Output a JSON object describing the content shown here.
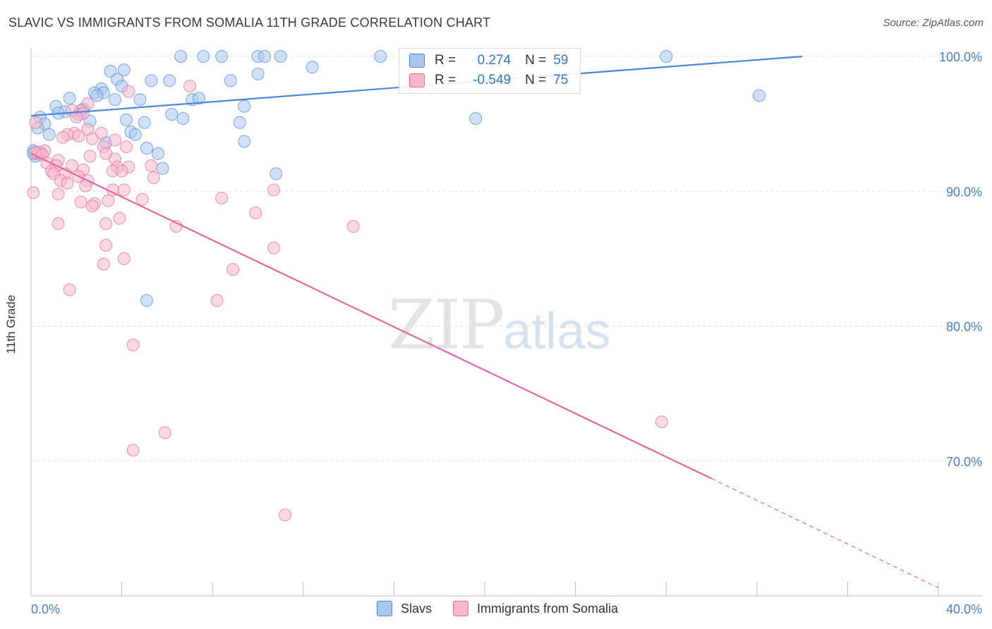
{
  "title": "SLAVIC VS IMMIGRANTS FROM SOMALIA 11TH GRADE CORRELATION CHART",
  "source": "Source: ZipAtlas.com",
  "watermark": {
    "zip": "ZIP",
    "atlas": "atlas"
  },
  "legend_top": {
    "r_label": "R =",
    "n_label": "N =",
    "rows": [
      {
        "r": "0.274",
        "n": "59",
        "color": "#a9c7ee"
      },
      {
        "r": "-0.549",
        "n": "75",
        "color": "#f6b8cb"
      }
    ]
  },
  "legend_bottom": [
    {
      "label": "Slavs",
      "color": "#a9c7ee"
    },
    {
      "label": "Immigrants from Somalia",
      "color": "#f6b8cb"
    }
  ],
  "chart_data": {
    "type": "scatter",
    "title": "SLAVIC VS IMMIGRANTS FROM SOMALIA 11TH GRADE CORRELATION CHART",
    "xlabel": "",
    "ylabel": "11th Grade",
    "xlim": [
      0,
      40
    ],
    "ylim": [
      60,
      100
    ],
    "x_tick_labels": [
      "0.0%",
      "40.0%"
    ],
    "y_ticks": [
      70,
      80,
      90,
      100
    ],
    "y_tick_labels": [
      "70.0%",
      "80.0%",
      "90.0%",
      "100.0%"
    ],
    "grid": true,
    "series": [
      {
        "name": "Slavs",
        "color": "#4a86d8",
        "fill": "#a9c7ee",
        "trend": {
          "x": [
            0,
            34
          ],
          "y": [
            95.6,
            100.0
          ],
          "dashed_to": null
        },
        "points": [
          [
            6.6,
            100
          ],
          [
            7.6,
            100
          ],
          [
            8.4,
            100
          ],
          [
            10.0,
            100
          ],
          [
            10.3,
            100
          ],
          [
            11.0,
            100
          ],
          [
            15.4,
            100
          ],
          [
            28.0,
            100
          ],
          [
            12.4,
            99.2
          ],
          [
            4.1,
            99.0
          ],
          [
            3.5,
            98.9
          ],
          [
            10.0,
            98.7
          ],
          [
            3.8,
            98.3
          ],
          [
            5.3,
            98.2
          ],
          [
            6.1,
            98.2
          ],
          [
            8.8,
            98.2
          ],
          [
            4.0,
            97.8
          ],
          [
            3.1,
            97.6
          ],
          [
            2.8,
            97.3
          ],
          [
            3.2,
            97.3
          ],
          [
            2.9,
            97.1
          ],
          [
            32.1,
            97.1
          ],
          [
            1.7,
            96.9
          ],
          [
            4.8,
            96.8
          ],
          [
            7.1,
            96.8
          ],
          [
            7.4,
            96.9
          ],
          [
            3.7,
            96.8
          ],
          [
            1.1,
            96.3
          ],
          [
            9.4,
            96.3
          ],
          [
            2.3,
            96.1
          ],
          [
            1.5,
            95.9
          ],
          [
            1.2,
            95.8
          ],
          [
            2.1,
            95.7
          ],
          [
            6.2,
            95.7
          ],
          [
            0.4,
            95.5
          ],
          [
            6.7,
            95.4
          ],
          [
            19.6,
            95.4
          ],
          [
            4.2,
            95.3
          ],
          [
            0.6,
            95.0
          ],
          [
            5.0,
            95.1
          ],
          [
            2.6,
            95.2
          ],
          [
            9.2,
            95.1
          ],
          [
            0.3,
            94.7
          ],
          [
            0.8,
            94.2
          ],
          [
            4.4,
            94.4
          ],
          [
            4.6,
            94.2
          ],
          [
            3.3,
            93.6
          ],
          [
            9.4,
            93.7
          ],
          [
            5.1,
            93.2
          ],
          [
            5.6,
            92.8
          ],
          [
            0.1,
            93.0
          ],
          [
            0.2,
            92.6
          ],
          [
            0.1,
            92.8
          ],
          [
            5.8,
            91.7
          ],
          [
            10.8,
            91.3
          ],
          [
            5.1,
            81.9
          ]
        ]
      },
      {
        "name": "Immigrants from Somalia",
        "color": "#e0689a",
        "fill": "#f6b8cb",
        "trend": {
          "x": [
            0,
            30
          ],
          "y": [
            92.8,
            68.7
          ],
          "dashed_to": [
            40,
            60.6
          ]
        },
        "points": [
          [
            7.0,
            97.8
          ],
          [
            4.3,
            97.4
          ],
          [
            2.5,
            96.5
          ],
          [
            2.2,
            96.0
          ],
          [
            1.8,
            96.0
          ],
          [
            2.3,
            95.8
          ],
          [
            2.0,
            95.5
          ],
          [
            0.2,
            95.1
          ],
          [
            2.5,
            94.6
          ],
          [
            3.1,
            94.3
          ],
          [
            1.9,
            94.3
          ],
          [
            2.1,
            94.1
          ],
          [
            1.6,
            94.2
          ],
          [
            1.4,
            94.0
          ],
          [
            2.7,
            93.9
          ],
          [
            3.7,
            93.8
          ],
          [
            3.2,
            93.3
          ],
          [
            4.2,
            93.3
          ],
          [
            0.6,
            93.0
          ],
          [
            0.4,
            92.9
          ],
          [
            0.3,
            92.8
          ],
          [
            0.2,
            92.9
          ],
          [
            0.5,
            92.7
          ],
          [
            2.6,
            92.6
          ],
          [
            3.3,
            92.8
          ],
          [
            3.7,
            92.4
          ],
          [
            1.2,
            92.3
          ],
          [
            0.7,
            92.1
          ],
          [
            1.1,
            91.9
          ],
          [
            1.8,
            91.9
          ],
          [
            4.3,
            91.8
          ],
          [
            5.3,
            91.9
          ],
          [
            2.3,
            91.6
          ],
          [
            3.8,
            91.8
          ],
          [
            0.9,
            91.5
          ],
          [
            1.0,
            91.3
          ],
          [
            1.5,
            91.3
          ],
          [
            2.1,
            91.1
          ],
          [
            3.6,
            91.5
          ],
          [
            4.0,
            91.5
          ],
          [
            5.4,
            91.0
          ],
          [
            2.5,
            90.8
          ],
          [
            1.3,
            90.8
          ],
          [
            1.6,
            90.6
          ],
          [
            2.4,
            90.4
          ],
          [
            3.6,
            90.1
          ],
          [
            4.1,
            90.1
          ],
          [
            10.7,
            90.1
          ],
          [
            0.1,
            89.9
          ],
          [
            1.2,
            89.8
          ],
          [
            2.8,
            89.1
          ],
          [
            4.9,
            89.4
          ],
          [
            8.4,
            89.5
          ],
          [
            3.4,
            89.3
          ],
          [
            2.2,
            89.2
          ],
          [
            2.7,
            88.9
          ],
          [
            9.9,
            88.4
          ],
          [
            3.9,
            88.0
          ],
          [
            1.2,
            87.6
          ],
          [
            3.3,
            87.6
          ],
          [
            6.4,
            87.4
          ],
          [
            14.2,
            87.4
          ],
          [
            3.3,
            86.0
          ],
          [
            10.7,
            85.8
          ],
          [
            4.1,
            85.0
          ],
          [
            3.2,
            84.6
          ],
          [
            8.9,
            84.2
          ],
          [
            1.7,
            82.7
          ],
          [
            8.2,
            81.9
          ],
          [
            4.5,
            78.6
          ],
          [
            27.8,
            72.9
          ],
          [
            5.9,
            72.1
          ],
          [
            4.5,
            70.8
          ],
          [
            11.2,
            66.0
          ]
        ]
      }
    ]
  }
}
